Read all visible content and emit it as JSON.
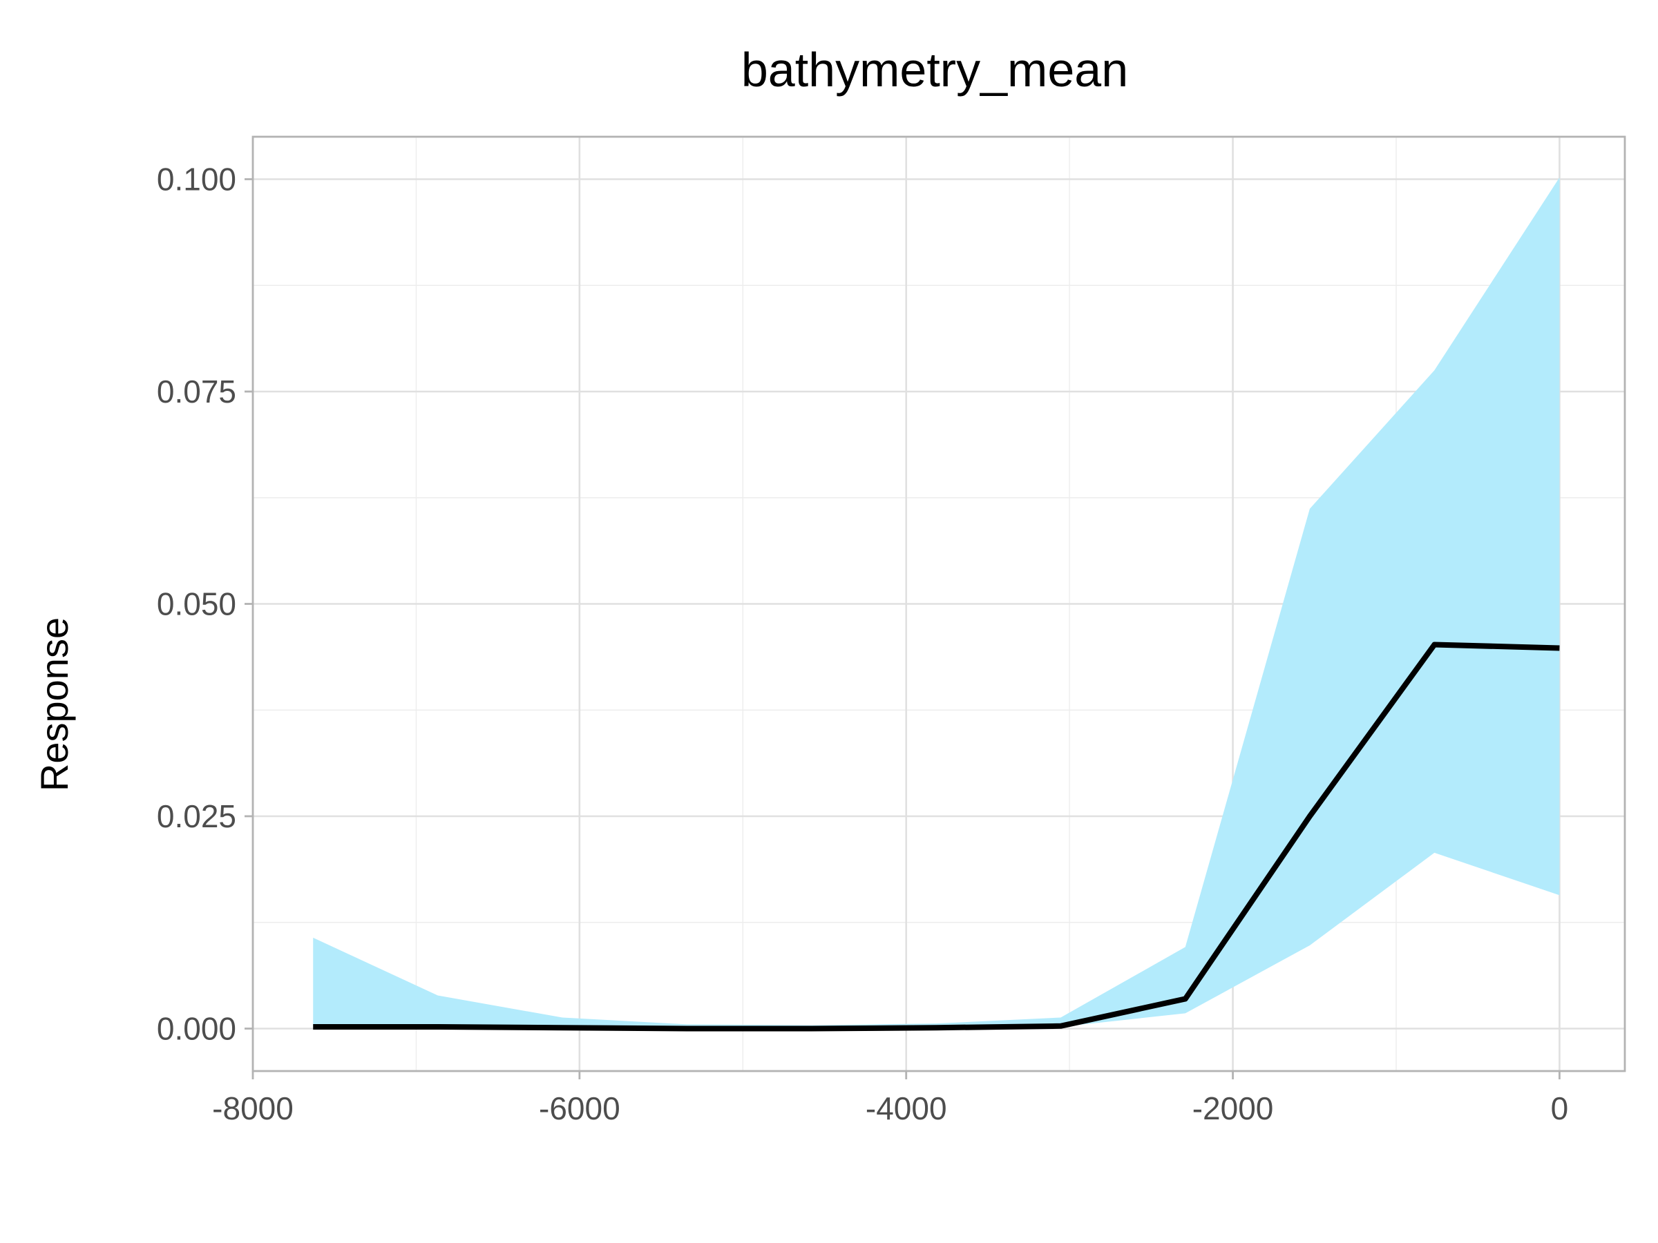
{
  "chart_data": {
    "type": "area",
    "title": "bathymetry_mean",
    "xlabel": "",
    "ylabel": "Response",
    "xlim": [
      -8000,
      400
    ],
    "ylim": [
      -0.005,
      0.105
    ],
    "x_ticks": [
      -8000,
      -6000,
      -4000,
      -2000,
      0
    ],
    "y_ticks": [
      0.0,
      0.025,
      0.05,
      0.075,
      0.1
    ],
    "x_tick_labels": [
      "-8000",
      "-6000",
      "-4000",
      "-2000",
      "0"
    ],
    "y_tick_labels": [
      "0.000",
      "0.025",
      "0.050",
      "0.075",
      "0.100"
    ],
    "grid": true,
    "x": [
      -7631,
      -6868,
      -6105,
      -5343,
      -4580,
      -3817,
      -3054,
      -2291,
      -1529,
      -766,
      0
    ],
    "series": [
      {
        "values": [
          0.0002,
          0.0002,
          0.0001,
          0.0,
          0.0,
          0.0001,
          0.0003,
          0.0035,
          0.025,
          0.0452,
          0.0448
        ],
        "lower": [
          0.0,
          0.0,
          0.0,
          0.0,
          0.0,
          0.0,
          0.0002,
          0.0018,
          0.0098,
          0.0207,
          0.0157
        ],
        "upper": [
          0.0107,
          0.0039,
          0.0013,
          0.0005,
          0.0004,
          0.0006,
          0.0013,
          0.0096,
          0.0612,
          0.0775,
          0.1002
        ]
      }
    ],
    "colors": {
      "ribbon": "#b3ebfc",
      "line": "#000000"
    }
  }
}
